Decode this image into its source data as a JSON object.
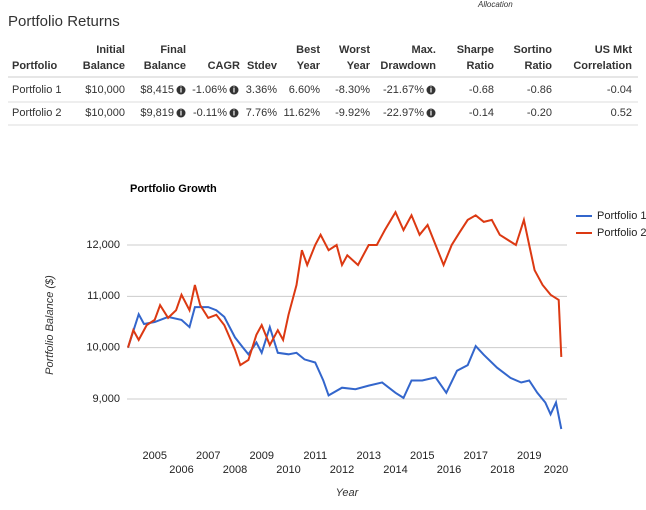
{
  "header": {
    "tab": "Allocation",
    "title": "Portfolio Returns"
  },
  "table": {
    "columns": [
      [
        "Portfolio"
      ],
      [
        "Initial",
        "Balance"
      ],
      [
        "Final",
        "Balance"
      ],
      [
        "CAGR"
      ],
      [
        "Stdev"
      ],
      [
        "Best",
        "Year"
      ],
      [
        "Worst",
        "Year"
      ],
      [
        "Max.",
        "Drawdown"
      ],
      [
        "Sharpe",
        "Ratio"
      ],
      [
        "Sortino",
        "Ratio"
      ],
      [
        "US Mkt",
        "Correlation"
      ]
    ],
    "rows": [
      [
        "Portfolio 1",
        "$10,000",
        "$8,415",
        "-1.06%",
        "3.36%",
        "6.60%",
        "-8.30%",
        "-21.67%",
        "-0.68",
        "-0.86",
        "-0.04"
      ],
      [
        "Portfolio 2",
        "$10,000",
        "$9,819",
        "-0.11%",
        "7.76%",
        "11.62%",
        "-9.92%",
        "-22.97%",
        "-0.14",
        "-0.20",
        "0.52"
      ]
    ]
  },
  "chart_data": {
    "type": "line",
    "title": "Portfolio Growth",
    "x_label": "Year",
    "y_label": "Portfolio Balance ($)",
    "xlim": [
      2004,
      2020.3
    ],
    "ylim": [
      8200,
      12780
    ],
    "xticks": [
      2005,
      2006,
      2007,
      2008,
      2009,
      2010,
      2011,
      2012,
      2013,
      2014,
      2015,
      2016,
      2017,
      2018,
      2019,
      2020
    ],
    "yticks": [
      {
        "value": 9000,
        "label": "9,000"
      },
      {
        "value": 10000,
        "label": "10,000"
      },
      {
        "value": 11000,
        "label": "11,000"
      },
      {
        "value": 12000,
        "label": "12,000"
      }
    ],
    "grid": true,
    "legend": "right",
    "series": [
      {
        "name": "Portfolio 1",
        "color": "#3366cc",
        "x": [
          2004.0,
          2004.4,
          2004.6,
          2005.0,
          2005.5,
          2006.0,
          2006.3,
          2006.5,
          2007.0,
          2007.3,
          2007.6,
          2008.0,
          2008.3,
          2008.5,
          2008.8,
          2009.0,
          2009.3,
          2009.6,
          2010.0,
          2010.3,
          2010.6,
          2011.0,
          2011.3,
          2011.5,
          2012.0,
          2012.5,
          2013.0,
          2013.5,
          2014.0,
          2014.3,
          2014.6,
          2015.0,
          2015.5,
          2015.9,
          2016.3,
          2016.7,
          2017.0,
          2017.3,
          2017.8,
          2018.3,
          2018.7,
          2019.0,
          2019.3,
          2019.6,
          2019.8,
          2020.0,
          2020.2
        ],
        "values": [
          10000,
          10650,
          10460,
          10500,
          10600,
          10540,
          10400,
          10790,
          10790,
          10730,
          10600,
          10200,
          10000,
          9870,
          10100,
          9900,
          10400,
          9900,
          9870,
          9900,
          9770,
          9710,
          9360,
          9070,
          9220,
          9190,
          9260,
          9320,
          9120,
          9020,
          9360,
          9360,
          9420,
          9120,
          9550,
          9660,
          10030,
          9860,
          9610,
          9410,
          9320,
          9360,
          9120,
          8930,
          8700,
          8930,
          8415
        ]
      },
      {
        "name": "Portfolio 2",
        "color": "#dc3912",
        "x": [
          2004.0,
          2004.2,
          2004.4,
          2004.7,
          2005.0,
          2005.2,
          2005.5,
          2005.8,
          2006.0,
          2006.3,
          2006.5,
          2006.7,
          2007.0,
          2007.3,
          2007.6,
          2008.0,
          2008.2,
          2008.5,
          2008.8,
          2009.0,
          2009.3,
          2009.6,
          2009.8,
          2010.0,
          2010.3,
          2010.5,
          2010.7,
          2011.0,
          2011.2,
          2011.5,
          2011.8,
          2012.0,
          2012.2,
          2012.6,
          2013.0,
          2013.3,
          2013.6,
          2014.0,
          2014.3,
          2014.6,
          2014.9,
          2015.2,
          2015.5,
          2015.8,
          2016.1,
          2016.4,
          2016.7,
          2017.0,
          2017.3,
          2017.6,
          2017.9,
          2018.2,
          2018.5,
          2018.8,
          2019.0,
          2019.2,
          2019.5,
          2019.8,
          2020.1,
          2020.2
        ],
        "values": [
          10000,
          10340,
          10150,
          10440,
          10540,
          10830,
          10580,
          10730,
          11030,
          10730,
          11220,
          10830,
          10580,
          10640,
          10440,
          9960,
          9660,
          9760,
          10250,
          10440,
          10050,
          10340,
          10150,
          10640,
          11220,
          11900,
          11610,
          12000,
          12200,
          11900,
          12000,
          11610,
          11800,
          11610,
          12000,
          12000,
          12290,
          12640,
          12290,
          12580,
          12200,
          12390,
          12000,
          11610,
          12000,
          12250,
          12490,
          12580,
          12450,
          12490,
          12200,
          12100,
          12000,
          12490,
          12000,
          11510,
          11220,
          11030,
          10930,
          9819
        ]
      }
    ]
  }
}
